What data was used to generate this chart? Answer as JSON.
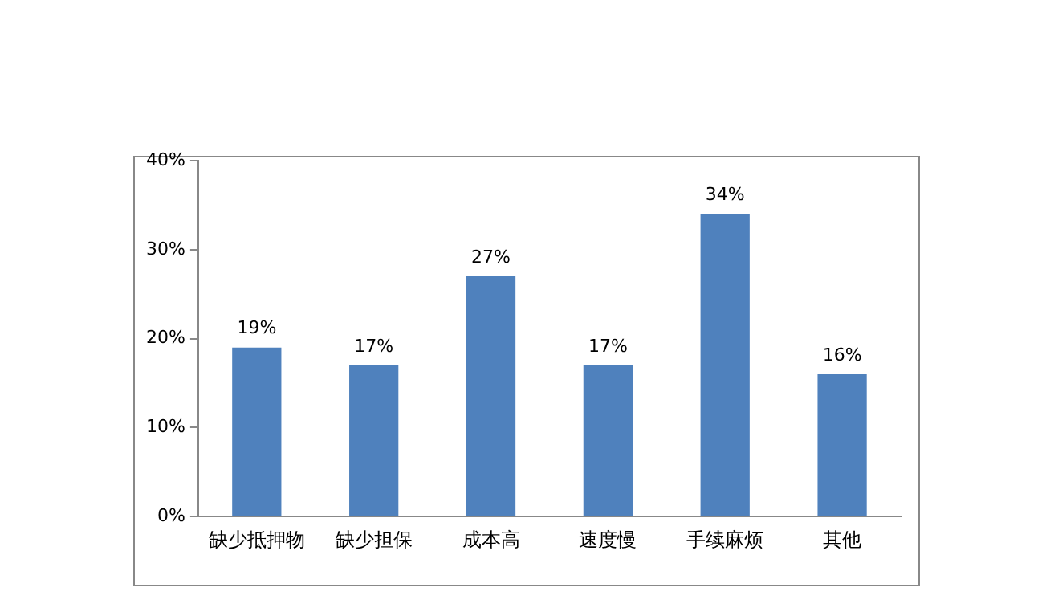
{
  "chart_data": {
    "type": "bar",
    "categories": [
      "缺少抵押物",
      "缺少担保",
      "成本高",
      "速度慢",
      "手续麻烦",
      "其他"
    ],
    "values": [
      19,
      17,
      27,
      17,
      34,
      16
    ],
    "value_labels": [
      "19%",
      "17%",
      "27%",
      "17%",
      "34%",
      "16%"
    ],
    "color": "#4f81bd",
    "ylim": [
      0,
      40
    ],
    "yticks": [
      {
        "value": 0,
        "label": "0%"
      },
      {
        "value": 10,
        "label": "10%"
      },
      {
        "value": 20,
        "label": "20%"
      },
      {
        "value": 30,
        "label": "30%"
      },
      {
        "value": 40,
        "label": "40%"
      }
    ],
    "grid": false,
    "legend": false
  }
}
